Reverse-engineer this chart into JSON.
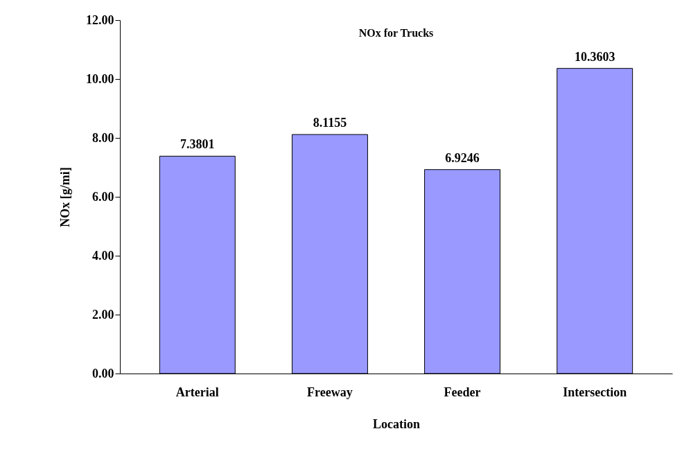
{
  "chart_data": {
    "type": "bar",
    "title": "NOx for Trucks",
    "xlabel": "Location",
    "ylabel": "NOx [g/mi]",
    "categories": [
      "Arterial",
      "Freeway",
      "Feeder",
      "Intersection"
    ],
    "values": [
      7.3801,
      8.1155,
      6.9246,
      10.3603
    ],
    "color": "#9999ff",
    "ylim": [
      0,
      12
    ],
    "yticks": [
      {
        "value": 0,
        "label": "0.00"
      },
      {
        "value": 2,
        "label": "2.00"
      },
      {
        "value": 4,
        "label": "4.00"
      },
      {
        "value": 6,
        "label": "6.00"
      },
      {
        "value": 8,
        "label": "8.00"
      },
      {
        "value": 10,
        "label": "10.00"
      },
      {
        "value": 12,
        "label": "12.00"
      }
    ],
    "data_labels": true,
    "grid": false
  }
}
